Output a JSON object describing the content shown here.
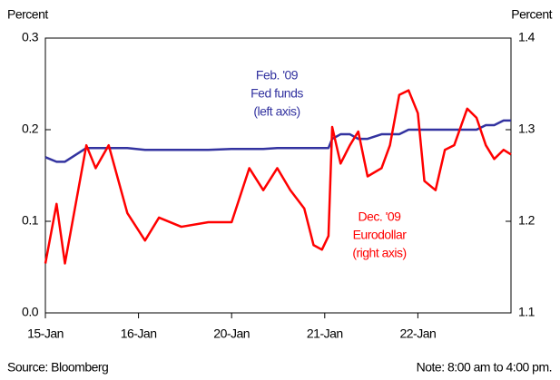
{
  "chart_data": {
    "type": "line",
    "y_label": "Percent",
    "y2_label": "Percent",
    "x": [
      0,
      0.12,
      0.21,
      0.44,
      0.54,
      0.68,
      0.88,
      1.07,
      1.22,
      1.46,
      1.75,
      2.0,
      2.19,
      2.34,
      2.49,
      2.63,
      2.78,
      2.88,
      2.97,
      3.04,
      3.08,
      3.17,
      3.27,
      3.36,
      3.46,
      3.61,
      3.7,
      3.8,
      3.9,
      4.0,
      4.07,
      4.19,
      4.29,
      4.39,
      4.53,
      4.63,
      4.73,
      4.82,
      4.92,
      5.0
    ],
    "xlim": [
      0,
      5
    ],
    "xticks": [
      {
        "value": 0,
        "label": "15-Jan"
      },
      {
        "value": 1,
        "label": "16-Jan"
      },
      {
        "value": 2,
        "label": "20-Jan"
      },
      {
        "value": 3,
        "label": "21-Jan"
      },
      {
        "value": 4,
        "label": "22-Jan"
      }
    ],
    "ylim": [
      0,
      0.3
    ],
    "yticks": [
      {
        "value": 0,
        "label": "0.0"
      },
      0.1,
      0.2,
      0.3
    ],
    "y2lim": [
      1.1,
      1.4
    ],
    "y2ticks": [
      1.1,
      1.2,
      1.3,
      1.4
    ],
    "series": [
      {
        "name": "Fed funds",
        "color": "#3333a0",
        "values": [
          0.17,
          0.165,
          0.165,
          0.18,
          0.18,
          0.18,
          0.18,
          0.178,
          0.178,
          0.178,
          0.178,
          0.179,
          0.179,
          0.179,
          0.18,
          0.18,
          0.18,
          0.18,
          0.18,
          0.18,
          0.19,
          0.195,
          0.195,
          0.19,
          0.19,
          0.195,
          0.195,
          0.195,
          0.2,
          0.2,
          0.2,
          0.2,
          0.2,
          0.2,
          0.2,
          0.2,
          0.205,
          0.205,
          0.21,
          0.21
        ]
      },
      {
        "name": "Eurodollar",
        "color": "#ff0000",
        "axis": "y2",
        "values": [
          1.154,
          1.219,
          1.154,
          1.283,
          1.258,
          1.283,
          1.209,
          1.179,
          1.204,
          1.194,
          1.199,
          1.199,
          1.258,
          1.234,
          1.258,
          1.234,
          1.214,
          1.174,
          1.169,
          1.184,
          1.303,
          1.263,
          1.283,
          1.298,
          1.249,
          1.258,
          1.283,
          1.338,
          1.343,
          1.318,
          1.244,
          1.234,
          1.278,
          1.283,
          1.323,
          1.313,
          1.283,
          1.268,
          1.278,
          1.273
        ]
      }
    ],
    "annotations": [
      {
        "lines": [
          "Feb. '09",
          "Fed funds",
          "(left axis)"
        ],
        "color": "#3333a0"
      },
      {
        "lines": [
          "Dec. '09",
          "Eurodollar",
          "(right axis)"
        ],
        "color": "#ff0000"
      }
    ],
    "source": "Source: Bloomberg",
    "note": "Note: 8:00 am to 4:00 pm."
  }
}
